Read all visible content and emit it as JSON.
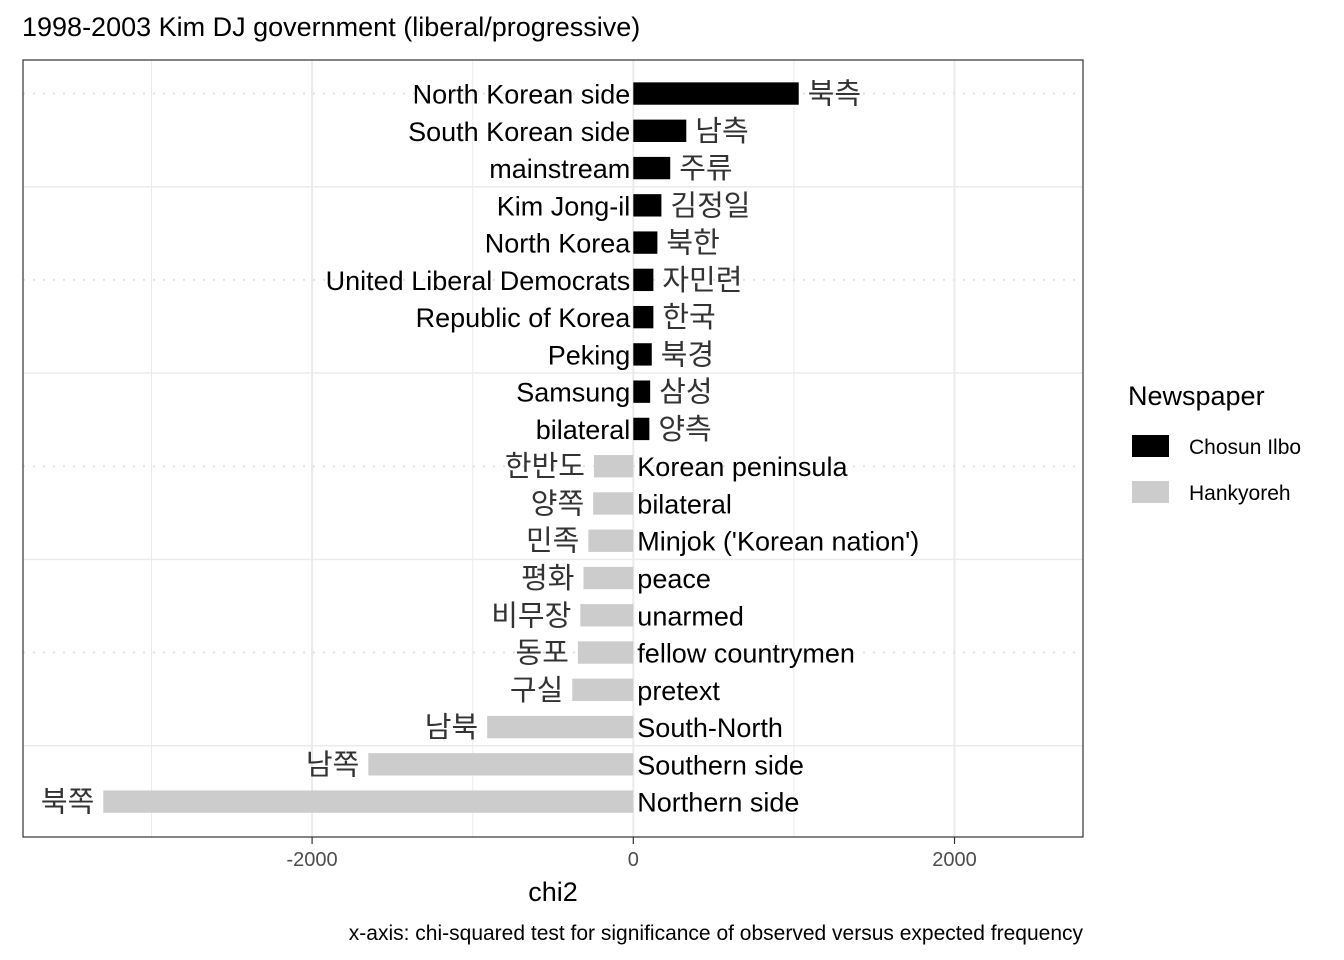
{
  "chart_data": {
    "type": "bar",
    "orientation": "horizontal",
    "title": "1998-2003 Kim DJ government (liberal/progressive)",
    "xlabel": "chi2",
    "caption": "x-axis: chi-squared test for significance of observed versus expected frequency",
    "xlim": [
      -3800,
      2800
    ],
    "x_ticks": [
      -2000,
      0,
      2000
    ],
    "x_tick_labels": [
      "-2000",
      "0",
      "2000"
    ],
    "grid": true,
    "legend": {
      "title": "Newspaper",
      "position": "right",
      "entries": [
        {
          "name": "Chosun Ilbo",
          "color": "#000000"
        },
        {
          "name": "Hankyoreh",
          "color": "#cccccc"
        }
      ]
    },
    "bars": [
      {
        "english": "North Korean side",
        "korean": "북측",
        "value": 1030,
        "newspaper": "Chosun Ilbo"
      },
      {
        "english": "South Korean side",
        "korean": "남측",
        "value": 330,
        "newspaper": "Chosun Ilbo"
      },
      {
        "english": "mainstream",
        "korean": "주류",
        "value": 230,
        "newspaper": "Chosun Ilbo"
      },
      {
        "english": "Kim Jong-il",
        "korean": "김정일",
        "value": 175,
        "newspaper": "Chosun Ilbo"
      },
      {
        "english": "North Korea",
        "korean": "북한",
        "value": 150,
        "newspaper": "Chosun Ilbo"
      },
      {
        "english": "United Liberal Democrats",
        "korean": "자민련",
        "value": 125,
        "newspaper": "Chosun Ilbo"
      },
      {
        "english": "Republic of Korea",
        "korean": "한국",
        "value": 125,
        "newspaper": "Chosun Ilbo"
      },
      {
        "english": "Peking",
        "korean": "북경",
        "value": 115,
        "newspaper": "Chosun Ilbo"
      },
      {
        "english": "Samsung",
        "korean": "삼성",
        "value": 105,
        "newspaper": "Chosun Ilbo"
      },
      {
        "english": "bilateral",
        "korean": "양측",
        "value": 100,
        "newspaper": "Chosun Ilbo"
      },
      {
        "english": "Korean peninsula",
        "korean": "한반도",
        "value": -245,
        "newspaper": "Hankyoreh"
      },
      {
        "english": "bilateral",
        "korean": "양쪽",
        "value": -250,
        "newspaper": "Hankyoreh"
      },
      {
        "english": "Minjok ('Korean nation')",
        "korean": "민족",
        "value": -280,
        "newspaper": "Hankyoreh"
      },
      {
        "english": "peace",
        "korean": "평화",
        "value": -310,
        "newspaper": "Hankyoreh"
      },
      {
        "english": "unarmed",
        "korean": "비무장",
        "value": -330,
        "newspaper": "Hankyoreh"
      },
      {
        "english": "fellow countrymen",
        "korean": "동포",
        "value": -345,
        "newspaper": "Hankyoreh"
      },
      {
        "english": "pretext",
        "korean": "구실",
        "value": -380,
        "newspaper": "Hankyoreh"
      },
      {
        "english": "South-North",
        "korean": "남북",
        "value": -910,
        "newspaper": "Hankyoreh"
      },
      {
        "english": "Southern side",
        "korean": "남쪽",
        "value": -1650,
        "newspaper": "Hankyoreh"
      },
      {
        "english": "Northern side",
        "korean": "북쪽",
        "value": -3300,
        "newspaper": "Hankyoreh"
      }
    ]
  }
}
